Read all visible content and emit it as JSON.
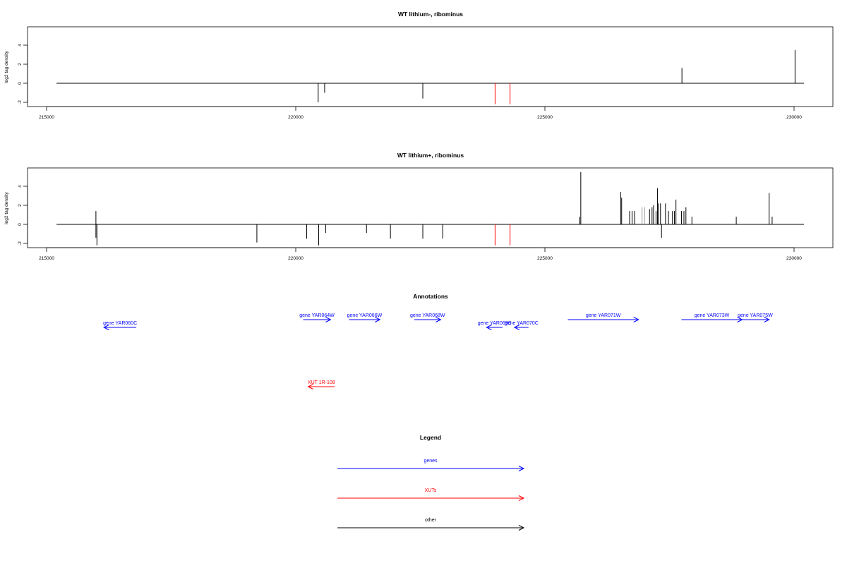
{
  "chart_data": [
    {
      "type": "bar",
      "title": "WT lithium-, ribominus",
      "ylabel": "log2 tag density",
      "xlabel": "",
      "xlim": [
        214600,
        230800
      ],
      "ylim": [
        -2.4,
        5.8
      ],
      "xticks": [
        "215000",
        "220000",
        "225000",
        "230000"
      ],
      "yticks": [
        "-2",
        "0",
        "2",
        "4"
      ],
      "baseline": [
        215200,
        230200
      ],
      "bars": [
        {
          "x": 220450,
          "y": -2.0,
          "color": "#000000"
        },
        {
          "x": 220580,
          "y": -1.0,
          "color": "#000000"
        },
        {
          "x": 222550,
          "y": -1.6,
          "color": "#000000"
        },
        {
          "x": 227750,
          "y": 1.6,
          "color": "#000000"
        },
        {
          "x": 230020,
          "y": 3.5,
          "color": "#000000"
        }
      ],
      "red_markers": [
        224000,
        224300
      ]
    },
    {
      "type": "bar",
      "title": "WT lithium+, ribominus",
      "ylabel": "log2 tag density",
      "xlabel": "",
      "xlim": [
        214600,
        230800
      ],
      "ylim": [
        -2.4,
        5.8
      ],
      "xticks": [
        "215000",
        "220000",
        "225000",
        "230000"
      ],
      "yticks": [
        "-2",
        "0",
        "2",
        "4"
      ],
      "baseline": [
        215200,
        230200
      ],
      "bars": [
        {
          "x": 215990,
          "y": 1.4,
          "color": "#000000"
        },
        {
          "x": 215990,
          "y": -1.4,
          "color": "#000000"
        },
        {
          "x": 216010,
          "y": -2.2,
          "color": "#000000"
        },
        {
          "x": 219220,
          "y": -1.9,
          "color": "#000000"
        },
        {
          "x": 220220,
          "y": -1.5,
          "color": "#000000"
        },
        {
          "x": 220460,
          "y": -2.2,
          "color": "#000000"
        },
        {
          "x": 220600,
          "y": -0.9,
          "color": "#000000"
        },
        {
          "x": 221420,
          "y": -0.9,
          "color": "#000000"
        },
        {
          "x": 221900,
          "y": -1.5,
          "color": "#000000"
        },
        {
          "x": 222550,
          "y": -1.5,
          "color": "#000000"
        },
        {
          "x": 222950,
          "y": -1.5,
          "color": "#000000"
        },
        {
          "x": 225700,
          "y": 0.8,
          "color": "#000000"
        },
        {
          "x": 225720,
          "y": 5.5,
          "color": "#000000"
        },
        {
          "x": 226520,
          "y": 3.4,
          "color": "#000000"
        },
        {
          "x": 226540,
          "y": 2.8,
          "color": "#000000"
        },
        {
          "x": 226700,
          "y": 1.4,
          "color": "#000000"
        },
        {
          "x": 226750,
          "y": 1.4,
          "color": "#000000"
        },
        {
          "x": 226800,
          "y": 1.4,
          "color": "#000000"
        },
        {
          "x": 226950,
          "y": 1.8,
          "color": "#999999"
        },
        {
          "x": 227000,
          "y": 1.8,
          "color": "#999999"
        },
        {
          "x": 227100,
          "y": 1.6,
          "color": "#000000"
        },
        {
          "x": 227150,
          "y": 1.8,
          "color": "#000000"
        },
        {
          "x": 227180,
          "y": 2.0,
          "color": "#000000"
        },
        {
          "x": 227230,
          "y": 1.4,
          "color": "#000000"
        },
        {
          "x": 227260,
          "y": 3.8,
          "color": "#000000"
        },
        {
          "x": 227280,
          "y": 2.2,
          "color": "#000000"
        },
        {
          "x": 227320,
          "y": 2.2,
          "color": "#000000"
        },
        {
          "x": 227340,
          "y": -1.4,
          "color": "#000000"
        },
        {
          "x": 227420,
          "y": 2.2,
          "color": "#000000"
        },
        {
          "x": 227480,
          "y": 1.4,
          "color": "#000000"
        },
        {
          "x": 227560,
          "y": 1.4,
          "color": "#000000"
        },
        {
          "x": 227600,
          "y": 1.4,
          "color": "#000000"
        },
        {
          "x": 227630,
          "y": 2.6,
          "color": "#000000"
        },
        {
          "x": 227740,
          "y": 1.4,
          "color": "#000000"
        },
        {
          "x": 227790,
          "y": 1.4,
          "color": "#000000"
        },
        {
          "x": 227830,
          "y": 1.8,
          "color": "#000000"
        },
        {
          "x": 227950,
          "y": 0.8,
          "color": "#000000"
        },
        {
          "x": 228840,
          "y": 0.8,
          "color": "#000000"
        },
        {
          "x": 229500,
          "y": 3.3,
          "color": "#000000"
        },
        {
          "x": 229560,
          "y": 0.8,
          "color": "#000000"
        }
      ],
      "red_markers": [
        224000,
        224300
      ]
    }
  ],
  "annotations": {
    "title": "Annotations",
    "genes": [
      {
        "label": "gene YAR060C",
        "x1": 216800,
        "x2": 216150,
        "row": 1
      },
      {
        "label": "gene YAR064W",
        "x1": 220150,
        "x2": 220700,
        "row": 0
      },
      {
        "label": "gene YAR066W",
        "x1": 221070,
        "x2": 221690,
        "row": 0
      },
      {
        "label": "gene YAR068W",
        "x1": 222380,
        "x2": 222910,
        "row": 0
      },
      {
        "label": "gene YAR069C",
        "x1": 224150,
        "x2": 223830,
        "row": 1
      },
      {
        "label": "gene YAR070C",
        "x1": 224670,
        "x2": 224390,
        "row": 1
      },
      {
        "label": "gene YAR071W",
        "x1": 225460,
        "x2": 226880,
        "row": 0
      },
      {
        "label": "gene YAR073W",
        "x1": 227740,
        "x2": 228960,
        "row": 0
      },
      {
        "label": "gene YAR075W",
        "x1": 228940,
        "x2": 229500,
        "row": 0
      }
    ],
    "xuts": [
      {
        "label": "XUT 1R-108",
        "x1": 220780,
        "x2": 220250
      }
    ]
  },
  "legend": {
    "title": "Legend",
    "items": [
      {
        "label": "genes",
        "color": "#0000ff"
      },
      {
        "label": "XUTs",
        "color": "#ff0000"
      },
      {
        "label": "other",
        "color": "#000000"
      }
    ]
  },
  "colors": {
    "gene": "#0000ff",
    "xut": "#ff0000",
    "axis": "#000000",
    "marker": "#ff0000"
  }
}
